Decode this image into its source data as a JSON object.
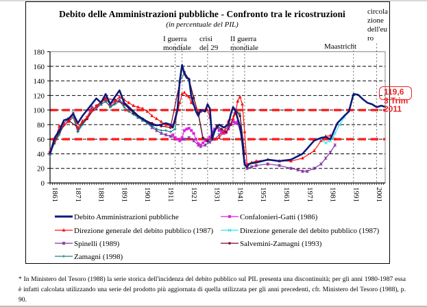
{
  "chart_data": {
    "type": "line",
    "title": "Debito delle Amministrazioni pubbliche - Confronto tra le ricostruzioni",
    "subtitle": "(in percentuale del PIL)",
    "xlabel": "",
    "ylabel": "",
    "xlim": [
      1861,
      2006
    ],
    "ylim": [
      0,
      180
    ],
    "y_ticks": [
      0,
      20,
      40,
      60,
      80,
      100,
      120,
      140,
      160,
      180
    ],
    "x_tick_labels": [
      "1861",
      "1871",
      "1881",
      "1891",
      "1901",
      "1911",
      "1921",
      "1931",
      "1941",
      "1951",
      "1961",
      "1971",
      "1981",
      "1991",
      "2001"
    ],
    "grid": "horizontal dashed",
    "reference_lines": [
      {
        "value": 100,
        "style": "thick red dashed",
        "color": "#ff2020"
      },
      {
        "value": 60,
        "style": "thick red dashed",
        "color": "#ff2020"
      }
    ],
    "event_lines": [
      {
        "years": [
          1915,
          1918
        ],
        "label": "I guerra mondiale"
      },
      {
        "years": [
          1929
        ],
        "label": "crisi del 29"
      },
      {
        "years": [
          1940,
          1945
        ],
        "label": "II guerra mondiale"
      },
      {
        "years": [
          1992
        ],
        "label": "Maastricht"
      },
      {
        "years": [
          2002
        ],
        "label": "circolazione dell'euro"
      }
    ],
    "annotations": {
      "wwi": "I guerra mondiale",
      "crisi": "crisi del 29",
      "wwii": "II guerra mondiale",
      "maastricht": "Maastricht",
      "euro_lines": [
        "circola",
        "zione",
        "dell'eu",
        "ro"
      ],
      "callout_value": "119,6",
      "callout_lines": [
        "3 Trim",
        "2011"
      ]
    },
    "legend_position": "bottom",
    "series": [
      {
        "name": "Debito Amministrazioni pubbliche",
        "color": "#0a1a7a",
        "marker": "none",
        "x": [
          1861,
          1863,
          1865,
          1867,
          1869,
          1871,
          1873,
          1875,
          1877,
          1879,
          1881,
          1883,
          1885,
          1887,
          1889,
          1891,
          1893,
          1895,
          1897,
          1899,
          1901,
          1903,
          1905,
          1907,
          1909,
          1911,
          1913,
          1914,
          1915,
          1916,
          1917,
          1918,
          1919,
          1920,
          1921,
          1922,
          1924,
          1925,
          1926,
          1928,
          1929,
          1930,
          1931,
          1932,
          1934,
          1936,
          1938,
          1939,
          1940,
          1941,
          1942,
          1943,
          1944,
          1945,
          1946,
          1947,
          1948,
          1950,
          1955,
          1960,
          1965,
          1970,
          1975,
          1978,
          1980,
          1982,
          1985,
          1988,
          1990,
          1992,
          1994,
          1996,
          1998,
          2000,
          2002,
          2004,
          2006
        ],
        "values": [
          40,
          62,
          72,
          86,
          88,
          95,
          82,
          92,
          100,
          108,
          116,
          110,
          122,
          108,
          118,
          127,
          110,
          104,
          98,
          92,
          88,
          84,
          80,
          79,
          80,
          82,
          80,
          76,
          88,
          100,
          140,
          162,
          150,
          144,
          143,
          118,
          98,
          92,
          100,
          98,
          108,
          102,
          60,
          72,
          80,
          76,
          80,
          94,
          104,
          100,
          88,
          78,
          55,
          25,
          22,
          26,
          27,
          28,
          32,
          30,
          32,
          40,
          58,
          62,
          63,
          60,
          82,
          92,
          98,
          122,
          121,
          115,
          110,
          108,
          104,
          106,
          104
        ]
      },
      {
        "name": "Confalonieri-Gatti (1986)",
        "color": "#e020e0",
        "marker": "square",
        "x": [
          1914,
          1915,
          1916,
          1917,
          1918,
          1919,
          1920,
          1921,
          1922,
          1923,
          1924,
          1925,
          1926,
          1927,
          1928,
          1929,
          1930,
          1931,
          1932,
          1933,
          1934,
          1935,
          1936,
          1937,
          1938,
          1939,
          1940,
          1941,
          1942
        ],
        "values": [
          66,
          62,
          60,
          58,
          62,
          72,
          74,
          75,
          72,
          68,
          60,
          54,
          52,
          55,
          58,
          60,
          63,
          70,
          74,
          76,
          72,
          70,
          68,
          69,
          74,
          80,
          84,
          82,
          84
        ]
      },
      {
        "name": "Direzione generale del debito pubblico (1987)",
        "color": "#ff1010",
        "marker": "triangle",
        "x": [
          1861,
          1863,
          1865,
          1867,
          1869,
          1871,
          1873,
          1875,
          1877,
          1879,
          1881,
          1883,
          1885,
          1887,
          1889,
          1891,
          1893,
          1895,
          1897,
          1899,
          1901,
          1903,
          1905,
          1907,
          1909,
          1911,
          1913,
          1915,
          1917,
          1918,
          1919,
          1920,
          1921,
          1922,
          1924,
          1926,
          1928,
          1929,
          1930,
          1931,
          1932,
          1934,
          1936,
          1938,
          1940,
          1941,
          1942,
          1943,
          1944,
          1945,
          1946,
          1948,
          1950,
          1955,
          1960,
          1965,
          1970,
          1975,
          1978,
          1980,
          1982,
          1984
        ],
        "values": [
          44,
          58,
          78,
          80,
          84,
          94,
          75,
          85,
          90,
          100,
          105,
          110,
          115,
          108,
          112,
          118,
          114,
          110,
          106,
          104,
          102,
          98,
          92,
          88,
          84,
          80,
          78,
          84,
          110,
          122,
          124,
          120,
          118,
          110,
          102,
          98,
          100,
          100,
          90,
          62,
          60,
          62,
          70,
          85,
          88,
          95,
          112,
          118,
          108,
          70,
          26,
          28,
          30,
          32,
          30,
          30,
          34,
          44,
          58,
          64,
          65,
          60
        ]
      },
      {
        "name": "Direzione generale del debito pubblico (1987)",
        "color": "#30e0f0",
        "marker": "x",
        "x": [
          1978,
          1980,
          1982,
          1983,
          1984,
          1986,
          1988
        ],
        "values": [
          60,
          55,
          58,
          62,
          68,
          80,
          90
        ]
      },
      {
        "name": "Spinelli (1989)",
        "color": "#8030a0",
        "marker": "asterisk",
        "x": [
          1861,
          1863,
          1865,
          1867,
          1869,
          1871,
          1873,
          1875,
          1877,
          1879,
          1881,
          1883,
          1885,
          1887,
          1889,
          1891,
          1893,
          1895,
          1897,
          1899,
          1901,
          1903,
          1905,
          1907,
          1909,
          1911,
          1913,
          1915,
          1917,
          1919,
          1921,
          1923,
          1925,
          1926,
          1928,
          1930,
          1932,
          1934,
          1936,
          1938,
          1940,
          1942,
          1944,
          1945,
          1946,
          1948,
          1950,
          1955,
          1960,
          1965,
          1968,
          1970,
          1972,
          1975,
          1978,
          1980,
          1982,
          1984
        ],
        "values": [
          40,
          55,
          70,
          82,
          88,
          96,
          72,
          82,
          90,
          104,
          102,
          108,
          112,
          105,
          110,
          114,
          108,
          102,
          96,
          90,
          86,
          82,
          76,
          72,
          68,
          66,
          64,
          62,
          58,
          60,
          62,
          58,
          52,
          50,
          52,
          56,
          60,
          66,
          70,
          78,
          86,
          82,
          60,
          30,
          20,
          22,
          24,
          26,
          24,
          20,
          18,
          16,
          16,
          20,
          26,
          34,
          42,
          52
        ]
      },
      {
        "name": "Salvemini-Zamagni (1993)",
        "color": "#800020",
        "marker": "circle",
        "x": [
          1861,
          1865,
          1869,
          1873,
          1877,
          1881,
          1885,
          1889,
          1893,
          1897,
          1901,
          1905,
          1909,
          1913,
          1917,
          1918,
          1919,
          1921,
          1923,
          1925,
          1927,
          1929,
          1931,
          1933,
          1935,
          1937,
          1939,
          1941,
          1943,
          1945
        ],
        "values": [
          42,
          70,
          86,
          76,
          88,
          106,
          116,
          114,
          108,
          96,
          88,
          82,
          78,
          76,
          138,
          160,
          152,
          142,
          116,
          96,
          62,
          58,
          62,
          78,
          74,
          70,
          80,
          100,
          92,
          40
        ]
      },
      {
        "name": "Zamagni (1998)",
        "color": "#108080",
        "marker": "plus",
        "x": [
          1861,
          1863,
          1865,
          1867,
          1869,
          1871,
          1873,
          1875,
          1877,
          1879,
          1881,
          1883,
          1885,
          1887,
          1889,
          1891,
          1893,
          1895,
          1897,
          1899,
          1901,
          1903,
          1905,
          1907,
          1909,
          1911,
          1913,
          1915,
          1917,
          1919,
          1921,
          1923,
          1925,
          1927,
          1929,
          1931,
          1933,
          1935,
          1937,
          1939,
          1941,
          1943,
          1945
        ],
        "values": [
          38,
          56,
          66,
          80,
          84,
          90,
          70,
          80,
          88,
          100,
          104,
          108,
          112,
          104,
          108,
          112,
          104,
          98,
          94,
          90,
          86,
          82,
          78,
          74,
          72,
          72,
          70,
          74,
          140,
          150,
          142,
          118,
          94,
          60,
          56,
          60,
          76,
          72,
          70,
          80,
          100,
          95,
          40
        ]
      }
    ]
  },
  "legend": [
    {
      "label": "Debito Amministrazioni pubbliche",
      "color": "#0a1a7a",
      "marker": "none"
    },
    {
      "label": "Confalonieri-Gatti (1986)",
      "color": "#e020e0",
      "marker": "square"
    },
    {
      "label": "Direzione generale del debito pubblico (1987)",
      "color": "#ff1010",
      "marker": "triangle"
    },
    {
      "label": "Direzione generale del debito pubblico (1987)",
      "color": "#30e0f0",
      "marker": "x"
    },
    {
      "label": "Spinelli (1989)",
      "color": "#8030a0",
      "marker": "asterisk"
    },
    {
      "label": "Salvemini-Zamagni (1993)",
      "color": "#800020",
      "marker": "circle"
    },
    {
      "label": "Zamagni (1998)",
      "color": "#108080",
      "marker": "plus"
    }
  ],
  "footnote": "* In Ministero del Tesoro (1988) la serie storica dell'incidenza del debito pubblico sul PIL presenta una discontinuità; per gli anni 1980-1987 essa è infatti calcolata utilizzando una serie del prodotto più aggiornata di quella utilizzata per gli anni precedenti, cfr. Ministero del Tesoro (1988), p. 90."
}
